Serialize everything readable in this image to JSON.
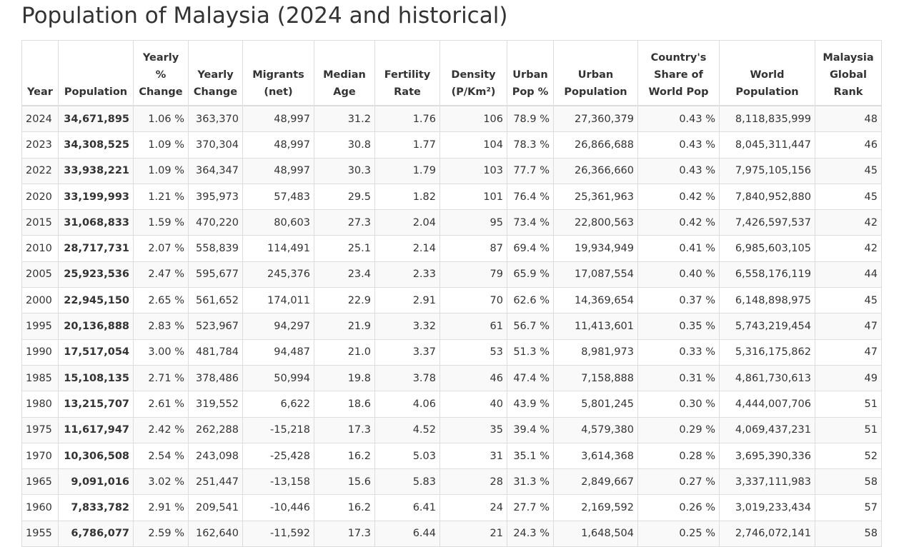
{
  "page": {
    "title": "Population of Malaysia (2024 and historical)"
  },
  "table": {
    "headers": [
      {
        "key": "year",
        "lines": [
          "Year"
        ]
      },
      {
        "key": "population",
        "lines": [
          "Population"
        ]
      },
      {
        "key": "yearly_pct_change",
        "lines": [
          "Yearly",
          "%",
          "Change"
        ]
      },
      {
        "key": "yearly_change",
        "lines": [
          "Yearly",
          "Change"
        ]
      },
      {
        "key": "migrants",
        "lines": [
          "Migrants",
          "(net)"
        ]
      },
      {
        "key": "median_age",
        "lines": [
          "Median",
          "Age"
        ]
      },
      {
        "key": "fertility_rate",
        "lines": [
          "Fertility",
          "Rate"
        ]
      },
      {
        "key": "density",
        "lines": [
          "Density",
          "(P/Km²)"
        ]
      },
      {
        "key": "urban_pop_pct",
        "lines": [
          "Urban",
          "Pop %"
        ]
      },
      {
        "key": "urban_population",
        "lines": [
          "Urban",
          "Population"
        ]
      },
      {
        "key": "world_share",
        "lines": [
          "Country's",
          "Share of",
          "World Pop"
        ]
      },
      {
        "key": "world_population",
        "lines": [
          "World",
          "Population"
        ]
      },
      {
        "key": "global_rank",
        "lines": [
          "Malaysia",
          "Global",
          "Rank"
        ]
      }
    ],
    "rows": [
      [
        "2024",
        "34,671,895",
        "1.06 %",
        "363,370",
        "48,997",
        "31.2",
        "1.76",
        "106",
        "78.9 %",
        "27,360,379",
        "0.43 %",
        "8,118,835,999",
        "48"
      ],
      [
        "2023",
        "34,308,525",
        "1.09 %",
        "370,304",
        "48,997",
        "30.8",
        "1.77",
        "104",
        "78.3 %",
        "26,866,688",
        "0.43 %",
        "8,045,311,447",
        "46"
      ],
      [
        "2022",
        "33,938,221",
        "1.09 %",
        "364,347",
        "48,997",
        "30.3",
        "1.79",
        "103",
        "77.7 %",
        "26,366,660",
        "0.43 %",
        "7,975,105,156",
        "45"
      ],
      [
        "2020",
        "33,199,993",
        "1.21 %",
        "395,973",
        "57,483",
        "29.5",
        "1.82",
        "101",
        "76.4 %",
        "25,361,963",
        "0.42 %",
        "7,840,952,880",
        "45"
      ],
      [
        "2015",
        "31,068,833",
        "1.59 %",
        "470,220",
        "80,603",
        "27.3",
        "2.04",
        "95",
        "73.4 %",
        "22,800,563",
        "0.42 %",
        "7,426,597,537",
        "42"
      ],
      [
        "2010",
        "28,717,731",
        "2.07 %",
        "558,839",
        "114,491",
        "25.1",
        "2.14",
        "87",
        "69.4 %",
        "19,934,949",
        "0.41 %",
        "6,985,603,105",
        "42"
      ],
      [
        "2005",
        "25,923,536",
        "2.47 %",
        "595,677",
        "245,376",
        "23.4",
        "2.33",
        "79",
        "65.9 %",
        "17,087,554",
        "0.40 %",
        "6,558,176,119",
        "44"
      ],
      [
        "2000",
        "22,945,150",
        "2.65 %",
        "561,652",
        "174,011",
        "22.9",
        "2.91",
        "70",
        "62.6 %",
        "14,369,654",
        "0.37 %",
        "6,148,898,975",
        "45"
      ],
      [
        "1995",
        "20,136,888",
        "2.83 %",
        "523,967",
        "94,297",
        "21.9",
        "3.32",
        "61",
        "56.7 %",
        "11,413,601",
        "0.35 %",
        "5,743,219,454",
        "47"
      ],
      [
        "1990",
        "17,517,054",
        "3.00 %",
        "481,784",
        "94,487",
        "21.0",
        "3.37",
        "53",
        "51.3 %",
        "8,981,973",
        "0.33 %",
        "5,316,175,862",
        "47"
      ],
      [
        "1985",
        "15,108,135",
        "2.71 %",
        "378,486",
        "50,994",
        "19.8",
        "3.78",
        "46",
        "47.4 %",
        "7,158,888",
        "0.31 %",
        "4,861,730,613",
        "49"
      ],
      [
        "1980",
        "13,215,707",
        "2.61 %",
        "319,552",
        "6,622",
        "18.6",
        "4.06",
        "40",
        "43.9 %",
        "5,801,245",
        "0.30 %",
        "4,444,007,706",
        "51"
      ],
      [
        "1975",
        "11,617,947",
        "2.42 %",
        "262,288",
        "-15,218",
        "17.3",
        "4.52",
        "35",
        "39.4 %",
        "4,579,380",
        "0.29 %",
        "4,069,437,231",
        "51"
      ],
      [
        "1970",
        "10,306,508",
        "2.54 %",
        "243,098",
        "-25,428",
        "16.2",
        "5.03",
        "31",
        "35.1 %",
        "3,614,368",
        "0.28 %",
        "3,695,390,336",
        "52"
      ],
      [
        "1965",
        "9,091,016",
        "3.02 %",
        "251,447",
        "-13,158",
        "15.6",
        "5.83",
        "28",
        "31.3 %",
        "2,849,667",
        "0.27 %",
        "3,337,111,983",
        "58"
      ],
      [
        "1960",
        "7,833,782",
        "2.91 %",
        "209,541",
        "-10,446",
        "16.2",
        "6.41",
        "24",
        "27.7 %",
        "2,169,592",
        "0.26 %",
        "3,019,233,434",
        "57"
      ],
      [
        "1955",
        "6,786,077",
        "2.59 %",
        "162,640",
        "-11,592",
        "17.3",
        "6.44",
        "21",
        "24.3 %",
        "1,648,504",
        "0.25 %",
        "2,746,072,141",
        "58"
      ]
    ]
  },
  "colors": {
    "text": "#333333",
    "border": "#dddddd",
    "row_stripe": "#f9f9f9"
  }
}
